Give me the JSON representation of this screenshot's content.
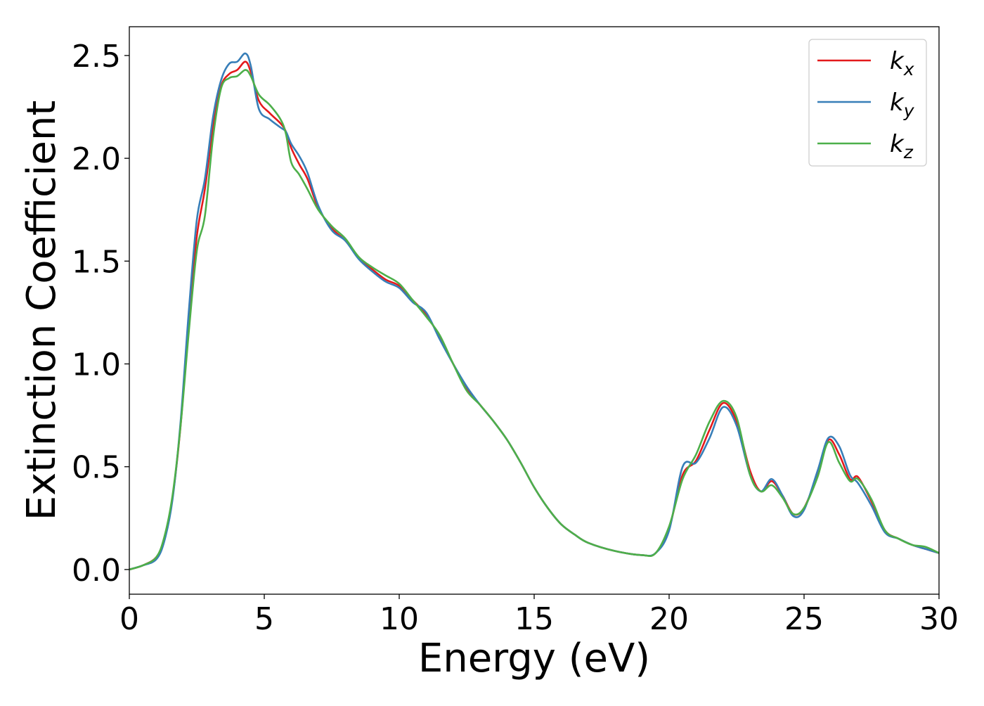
{
  "chart_data": {
    "type": "line",
    "xlabel": "Energy (eV)",
    "ylabel": "Extinction Coefficient",
    "xlim": [
      0,
      30
    ],
    "ylim": [
      -0.12,
      2.64
    ],
    "xticks": [
      0,
      5,
      10,
      15,
      20,
      25,
      30
    ],
    "yticks": [
      0.0,
      0.5,
      1.0,
      1.5,
      2.0,
      2.5
    ],
    "xtick_labels": [
      "0",
      "5",
      "10",
      "15",
      "20",
      "25",
      "30"
    ],
    "ytick_labels": [
      "0.0",
      "0.5",
      "1.0",
      "1.5",
      "2.0",
      "2.5"
    ],
    "grid": false,
    "legend_position": "top-right",
    "series": [
      {
        "name": "k_x",
        "legend_base": "k",
        "legend_sub": "x",
        "color": "#e41a1c",
        "points": [
          [
            0,
            0
          ],
          [
            0.5,
            0.02
          ],
          [
            1.0,
            0.06
          ],
          [
            1.3,
            0.15
          ],
          [
            1.6,
            0.35
          ],
          [
            1.9,
            0.7
          ],
          [
            2.2,
            1.2
          ],
          [
            2.5,
            1.62
          ],
          [
            2.8,
            1.85
          ],
          [
            3.1,
            2.15
          ],
          [
            3.4,
            2.35
          ],
          [
            3.7,
            2.41
          ],
          [
            4.0,
            2.43
          ],
          [
            4.3,
            2.47
          ],
          [
            4.5,
            2.42
          ],
          [
            4.8,
            2.28
          ],
          [
            5.2,
            2.22
          ],
          [
            5.6,
            2.17
          ],
          [
            5.8,
            2.13
          ],
          [
            6.0,
            2.05
          ],
          [
            6.3,
            1.97
          ],
          [
            6.6,
            1.9
          ],
          [
            7.0,
            1.76
          ],
          [
            7.5,
            1.66
          ],
          [
            8.0,
            1.6
          ],
          [
            8.5,
            1.52
          ],
          [
            9.0,
            1.46
          ],
          [
            9.5,
            1.41
          ],
          [
            10.0,
            1.38
          ],
          [
            10.5,
            1.31
          ],
          [
            11.0,
            1.24
          ],
          [
            11.5,
            1.13
          ],
          [
            12.0,
            1.0
          ],
          [
            12.5,
            0.88
          ],
          [
            13.0,
            0.8
          ],
          [
            13.5,
            0.72
          ],
          [
            14.0,
            0.63
          ],
          [
            14.5,
            0.52
          ],
          [
            15.0,
            0.4
          ],
          [
            15.5,
            0.3
          ],
          [
            16.0,
            0.22
          ],
          [
            16.5,
            0.17
          ],
          [
            17.0,
            0.13
          ],
          [
            18.0,
            0.09
          ],
          [
            19.0,
            0.07
          ],
          [
            19.5,
            0.08
          ],
          [
            20.0,
            0.2
          ],
          [
            20.5,
            0.46
          ],
          [
            21.0,
            0.53
          ],
          [
            21.5,
            0.68
          ],
          [
            22.0,
            0.81
          ],
          [
            22.5,
            0.72
          ],
          [
            23.0,
            0.48
          ],
          [
            23.4,
            0.38
          ],
          [
            23.8,
            0.43
          ],
          [
            24.2,
            0.36
          ],
          [
            24.6,
            0.27
          ],
          [
            25.0,
            0.3
          ],
          [
            25.5,
            0.46
          ],
          [
            25.9,
            0.63
          ],
          [
            26.3,
            0.56
          ],
          [
            26.7,
            0.44
          ],
          [
            27.0,
            0.45
          ],
          [
            27.5,
            0.33
          ],
          [
            28.0,
            0.19
          ],
          [
            28.5,
            0.15
          ],
          [
            29.0,
            0.12
          ],
          [
            29.5,
            0.1
          ],
          [
            30.0,
            0.08
          ]
        ]
      },
      {
        "name": "k_y",
        "legend_base": "k",
        "legend_sub": "y",
        "color": "#377eb8",
        "points": [
          [
            0,
            0
          ],
          [
            0.5,
            0.02
          ],
          [
            1.0,
            0.05
          ],
          [
            1.3,
            0.14
          ],
          [
            1.6,
            0.34
          ],
          [
            1.9,
            0.72
          ],
          [
            2.2,
            1.25
          ],
          [
            2.5,
            1.7
          ],
          [
            2.8,
            1.9
          ],
          [
            3.1,
            2.2
          ],
          [
            3.4,
            2.38
          ],
          [
            3.7,
            2.46
          ],
          [
            4.0,
            2.47
          ],
          [
            4.3,
            2.51
          ],
          [
            4.5,
            2.45
          ],
          [
            4.8,
            2.24
          ],
          [
            5.2,
            2.19
          ],
          [
            5.6,
            2.15
          ],
          [
            5.8,
            2.13
          ],
          [
            6.0,
            2.07
          ],
          [
            6.3,
            2.01
          ],
          [
            6.6,
            1.93
          ],
          [
            7.0,
            1.77
          ],
          [
            7.5,
            1.65
          ],
          [
            8.0,
            1.6
          ],
          [
            8.5,
            1.51
          ],
          [
            9.0,
            1.45
          ],
          [
            9.5,
            1.4
          ],
          [
            10.0,
            1.37
          ],
          [
            10.5,
            1.3
          ],
          [
            11.0,
            1.25
          ],
          [
            11.5,
            1.12
          ],
          [
            12.0,
            1.0
          ],
          [
            12.5,
            0.89
          ],
          [
            13.0,
            0.8
          ],
          [
            13.5,
            0.72
          ],
          [
            14.0,
            0.63
          ],
          [
            14.5,
            0.52
          ],
          [
            15.0,
            0.4
          ],
          [
            15.5,
            0.3
          ],
          [
            16.0,
            0.22
          ],
          [
            16.5,
            0.17
          ],
          [
            17.0,
            0.13
          ],
          [
            18.0,
            0.09
          ],
          [
            19.0,
            0.07
          ],
          [
            19.5,
            0.08
          ],
          [
            20.0,
            0.19
          ],
          [
            20.5,
            0.5
          ],
          [
            21.0,
            0.52
          ],
          [
            21.5,
            0.64
          ],
          [
            22.0,
            0.79
          ],
          [
            22.5,
            0.7
          ],
          [
            23.0,
            0.46
          ],
          [
            23.4,
            0.38
          ],
          [
            23.8,
            0.44
          ],
          [
            24.2,
            0.36
          ],
          [
            24.6,
            0.26
          ],
          [
            25.0,
            0.29
          ],
          [
            25.5,
            0.48
          ],
          [
            25.9,
            0.64
          ],
          [
            26.3,
            0.6
          ],
          [
            26.7,
            0.46
          ],
          [
            27.0,
            0.42
          ],
          [
            27.5,
            0.31
          ],
          [
            28.0,
            0.18
          ],
          [
            28.5,
            0.15
          ],
          [
            29.0,
            0.12
          ],
          [
            29.5,
            0.1
          ],
          [
            30.0,
            0.08
          ]
        ]
      },
      {
        "name": "k_z",
        "legend_base": "k",
        "legend_sub": "z",
        "color": "#4daf4a",
        "points": [
          [
            0,
            0
          ],
          [
            0.5,
            0.02
          ],
          [
            1.0,
            0.06
          ],
          [
            1.3,
            0.16
          ],
          [
            1.6,
            0.36
          ],
          [
            1.9,
            0.7
          ],
          [
            2.2,
            1.15
          ],
          [
            2.5,
            1.55
          ],
          [
            2.8,
            1.72
          ],
          [
            3.1,
            2.1
          ],
          [
            3.4,
            2.34
          ],
          [
            3.7,
            2.39
          ],
          [
            4.0,
            2.4
          ],
          [
            4.3,
            2.43
          ],
          [
            4.5,
            2.4
          ],
          [
            4.8,
            2.31
          ],
          [
            5.2,
            2.26
          ],
          [
            5.6,
            2.19
          ],
          [
            5.8,
            2.12
          ],
          [
            6.0,
            1.98
          ],
          [
            6.3,
            1.92
          ],
          [
            6.6,
            1.85
          ],
          [
            7.0,
            1.75
          ],
          [
            7.5,
            1.67
          ],
          [
            8.0,
            1.61
          ],
          [
            8.5,
            1.52
          ],
          [
            9.0,
            1.47
          ],
          [
            9.5,
            1.43
          ],
          [
            10.0,
            1.39
          ],
          [
            10.5,
            1.31
          ],
          [
            11.0,
            1.23
          ],
          [
            11.5,
            1.14
          ],
          [
            12.0,
            1.0
          ],
          [
            12.5,
            0.87
          ],
          [
            13.0,
            0.8
          ],
          [
            13.5,
            0.72
          ],
          [
            14.0,
            0.63
          ],
          [
            14.5,
            0.52
          ],
          [
            15.0,
            0.4
          ],
          [
            15.5,
            0.3
          ],
          [
            16.0,
            0.22
          ],
          [
            16.5,
            0.17
          ],
          [
            17.0,
            0.13
          ],
          [
            18.0,
            0.09
          ],
          [
            19.0,
            0.07
          ],
          [
            19.5,
            0.08
          ],
          [
            20.0,
            0.21
          ],
          [
            20.5,
            0.44
          ],
          [
            21.0,
            0.56
          ],
          [
            21.5,
            0.72
          ],
          [
            22.0,
            0.82
          ],
          [
            22.5,
            0.74
          ],
          [
            23.0,
            0.46
          ],
          [
            23.4,
            0.38
          ],
          [
            23.8,
            0.41
          ],
          [
            24.2,
            0.35
          ],
          [
            24.6,
            0.27
          ],
          [
            25.0,
            0.3
          ],
          [
            25.5,
            0.45
          ],
          [
            25.9,
            0.62
          ],
          [
            26.3,
            0.52
          ],
          [
            26.7,
            0.43
          ],
          [
            27.0,
            0.44
          ],
          [
            27.5,
            0.34
          ],
          [
            28.0,
            0.19
          ],
          [
            28.5,
            0.15
          ],
          [
            29.0,
            0.12
          ],
          [
            29.5,
            0.11
          ],
          [
            30.0,
            0.08
          ]
        ]
      }
    ]
  }
}
